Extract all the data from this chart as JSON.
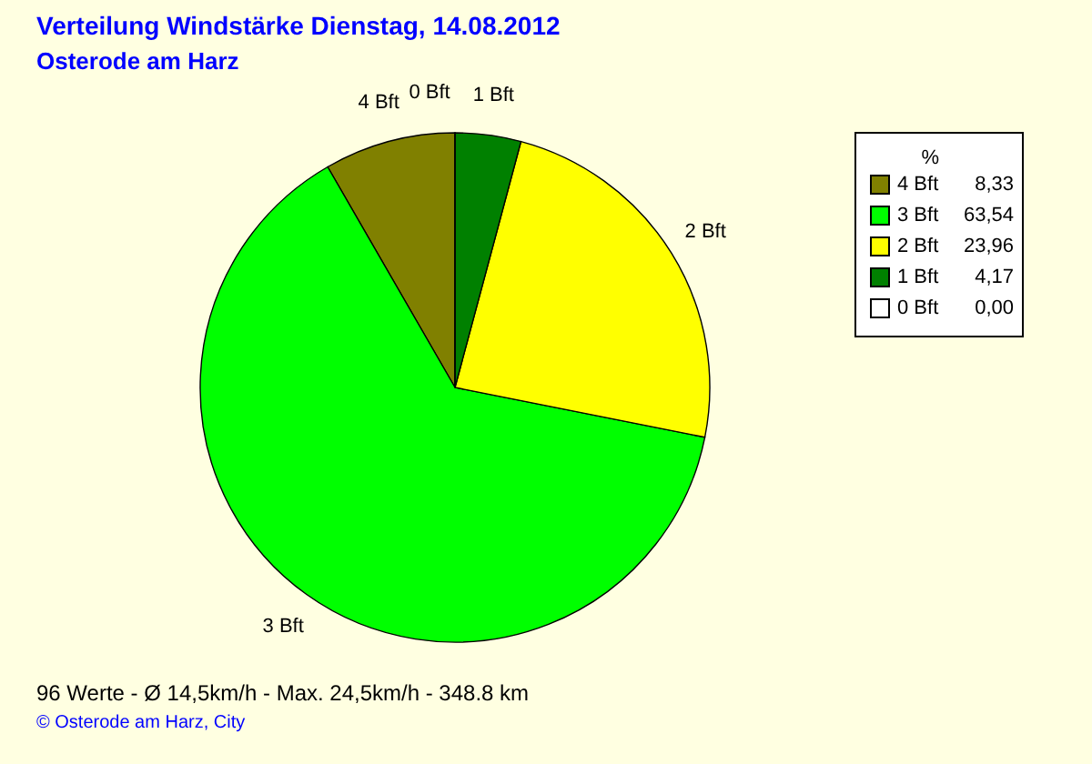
{
  "chart_data": {
    "type": "pie",
    "title": "Verteilung Windstärke  Dienstag, 14.08.2012",
    "subtitle": "Osterode am Harz",
    "legend_title": "%",
    "legend": "top right",
    "categories": [
      "4 Bft",
      "3 Bft",
      "2 Bft",
      "1 Bft",
      "0 Bft"
    ],
    "values": [
      8.33,
      63.54,
      23.96,
      4.17,
      0.0
    ],
    "value_labels": [
      "8,33",
      "63,54",
      "23,96",
      "4,17",
      "0,00"
    ],
    "colors": [
      "#808000",
      "#00ff00",
      "#ffff00",
      "#008000",
      "#ffffff"
    ],
    "annotations": [
      "96 Werte  -  Ø 14,5km/h  -  Max. 24,5km/h  -   348.8 km",
      "© Osterode am Harz, City"
    ]
  }
}
